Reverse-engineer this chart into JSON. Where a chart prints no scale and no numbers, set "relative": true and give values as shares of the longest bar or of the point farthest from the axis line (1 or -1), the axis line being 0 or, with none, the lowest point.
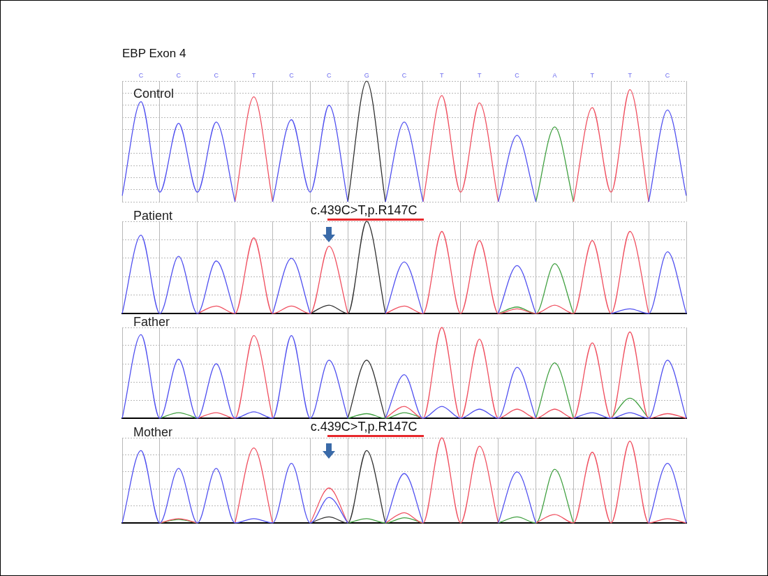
{
  "chart_data": [
    {
      "type": "line",
      "relative": true,
      "title": "EBP Exon 4",
      "subtitle": "Control",
      "grid": true,
      "legend": false,
      "marker": "none",
      "tick_labels": "x",
      "categories": [
        null,
        "C",
        null,
        "C",
        null,
        "C",
        null,
        "T",
        null,
        "C",
        null,
        "C",
        null,
        "G",
        null,
        "C",
        null,
        "T",
        null,
        "T",
        null,
        "C",
        null,
        "A",
        null,
        "T",
        null,
        "T",
        null,
        "C",
        null
      ],
      "series": [
        {
          "color": "#5050f0",
          "values": [
            0.05,
            0.83,
            0.08,
            0.65,
            0.08,
            0.66,
            0,
            null,
            0,
            0.68,
            0.08,
            0.8,
            0,
            null,
            0,
            0.66,
            0,
            null,
            null,
            null,
            0,
            0.55,
            0,
            null,
            null,
            null,
            null,
            null,
            0,
            0.76,
            0.05
          ]
        },
        {
          "color": "#f05060",
          "values": [
            null,
            null,
            null,
            null,
            null,
            null,
            0,
            0.87,
            0,
            null,
            null,
            null,
            null,
            null,
            null,
            null,
            0,
            0.88,
            0.08,
            0.82,
            0,
            null,
            null,
            null,
            0,
            0.78,
            0.08,
            0.93,
            0,
            null,
            null
          ]
        },
        {
          "color": "#303030",
          "values": [
            null,
            null,
            null,
            null,
            null,
            null,
            null,
            null,
            null,
            null,
            null,
            null,
            0,
            1,
            0,
            null,
            null,
            null,
            null,
            null,
            null,
            null,
            null,
            null,
            null,
            null,
            null,
            null,
            null,
            null,
            null
          ]
        },
        {
          "color": "#40a040",
          "values": [
            null,
            null,
            null,
            null,
            null,
            null,
            null,
            null,
            null,
            null,
            null,
            null,
            null,
            null,
            null,
            null,
            null,
            null,
            null,
            null,
            null,
            null,
            0,
            0.62,
            0,
            null,
            null,
            null,
            null,
            null,
            null
          ]
        }
      ]
    },
    {
      "type": "line",
      "relative": true,
      "title": "Patient",
      "grid": true,
      "legend": false,
      "marker": "none",
      "tick_labels": false,
      "annotations": [
        "c.439C>T,p.R147C"
      ],
      "categories": [
        null,
        null,
        null,
        null,
        null,
        null,
        null,
        null,
        null,
        null,
        null,
        null,
        null,
        null,
        null,
        null,
        null,
        null,
        null,
        null,
        null,
        null,
        null,
        null,
        null,
        null,
        null,
        null,
        null,
        null,
        null
      ],
      "series": [
        {
          "color": "#5050f0",
          "values": [
            0,
            0.85,
            0,
            0.62,
            0,
            0.57,
            0,
            null,
            0,
            0.6,
            0,
            null,
            null,
            null,
            0,
            0.56,
            0,
            null,
            null,
            null,
            0,
            0.52,
            0,
            null,
            null,
            null,
            0,
            0.05,
            0,
            0.67,
            0
          ]
        },
        {
          "color": "#f05060",
          "values": [
            null,
            null,
            null,
            null,
            0,
            0.08,
            0,
            0.82,
            0,
            0.08,
            0,
            0.73,
            0,
            null,
            0,
            0.08,
            0,
            0.89,
            0,
            0.79,
            0,
            0.05,
            0,
            0.09,
            0,
            0.79,
            0,
            0.89,
            0,
            null,
            null
          ]
        },
        {
          "color": "#303030",
          "values": [
            null,
            null,
            null,
            null,
            null,
            null,
            null,
            null,
            null,
            null,
            0,
            0.09,
            0,
            1,
            0,
            null,
            null,
            null,
            null,
            null,
            null,
            null,
            null,
            null,
            null,
            null,
            null,
            null,
            null,
            null,
            null
          ]
        },
        {
          "color": "#40a040",
          "values": [
            null,
            null,
            null,
            null,
            null,
            null,
            null,
            null,
            null,
            null,
            null,
            null,
            null,
            null,
            null,
            null,
            null,
            null,
            null,
            null,
            0,
            0.07,
            0,
            0.54,
            0,
            null,
            null,
            null,
            null,
            null,
            null
          ]
        }
      ]
    },
    {
      "type": "line",
      "relative": true,
      "title": "Father",
      "grid": true,
      "legend": false,
      "marker": "none",
      "tick_labels": false,
      "categories": [
        null,
        null,
        null,
        null,
        null,
        null,
        null,
        null,
        null,
        null,
        null,
        null,
        null,
        null,
        null,
        null,
        null,
        null,
        null,
        null,
        null,
        null,
        null,
        null,
        null,
        null,
        null,
        null,
        null,
        null,
        null
      ],
      "series": [
        {
          "color": "#5050f0",
          "values": [
            0,
            0.92,
            0,
            0.65,
            0,
            0.6,
            0,
            0.07,
            0,
            0.91,
            0,
            0.64,
            0,
            null,
            0,
            0.48,
            0,
            0.13,
            0,
            0.1,
            0,
            0.56,
            0,
            null,
            0,
            0.06,
            0,
            0.06,
            0,
            0.64,
            0
          ]
        },
        {
          "color": "#f05060",
          "values": [
            null,
            null,
            null,
            null,
            0,
            0.06,
            0,
            0.91,
            0,
            null,
            null,
            null,
            null,
            null,
            0,
            0.13,
            0,
            1,
            0,
            0.87,
            0,
            0.1,
            0,
            0.1,
            0,
            0.83,
            0,
            0.95,
            0,
            0.05,
            0
          ]
        },
        {
          "color": "#303030",
          "values": [
            null,
            null,
            null,
            null,
            null,
            null,
            null,
            null,
            null,
            null,
            null,
            null,
            0,
            0.64,
            0,
            null,
            null,
            null,
            null,
            null,
            null,
            null,
            null,
            null,
            null,
            null,
            null,
            null,
            null,
            null,
            null
          ]
        },
        {
          "color": "#40a040",
          "values": [
            null,
            null,
            0,
            0.06,
            0,
            null,
            null,
            null,
            null,
            null,
            null,
            null,
            0,
            0.05,
            0,
            0.06,
            0,
            null,
            null,
            null,
            null,
            null,
            0,
            0.61,
            0,
            null,
            0,
            0.22,
            0,
            null,
            null
          ]
        }
      ]
    },
    {
      "type": "line",
      "relative": true,
      "title": "Mother",
      "grid": true,
      "legend": false,
      "marker": "none",
      "tick_labels": false,
      "annotations": [
        "c.439C>T,p.R147C"
      ],
      "categories": [
        null,
        null,
        null,
        null,
        null,
        null,
        null,
        null,
        null,
        null,
        null,
        null,
        null,
        null,
        null,
        null,
        null,
        null,
        null,
        null,
        null,
        null,
        null,
        null,
        null,
        null,
        null,
        null,
        null,
        null,
        null
      ],
      "series": [
        {
          "color": "#5050f0",
          "values": [
            0,
            0.85,
            0,
            0.64,
            0,
            0.64,
            0,
            0.05,
            0,
            0.7,
            0,
            0.3,
            0,
            null,
            0,
            0.58,
            0,
            null,
            null,
            null,
            0,
            0.6,
            0,
            null,
            null,
            null,
            null,
            null,
            0,
            0.7,
            0
          ]
        },
        {
          "color": "#f05060",
          "values": [
            null,
            null,
            0,
            0.05,
            0,
            null,
            0,
            0.88,
            0,
            null,
            0,
            0.41,
            0,
            null,
            0,
            0.12,
            0,
            1,
            0,
            0.9,
            0,
            null,
            0,
            0.1,
            0,
            0.83,
            0,
            0.96,
            0,
            0.05,
            0
          ]
        },
        {
          "color": "#303030",
          "values": [
            null,
            null,
            null,
            null,
            null,
            null,
            null,
            null,
            null,
            null,
            0,
            0.07,
            0,
            0.85,
            0,
            null,
            null,
            null,
            null,
            null,
            null,
            null,
            null,
            null,
            null,
            null,
            null,
            null,
            null,
            null,
            null
          ]
        },
        {
          "color": "#40a040",
          "values": [
            null,
            null,
            0,
            0.04,
            0,
            null,
            null,
            null,
            null,
            null,
            null,
            null,
            0,
            0.05,
            0,
            0.06,
            0,
            null,
            null,
            null,
            0,
            0.07,
            0,
            0.63,
            0,
            null,
            null,
            null,
            null,
            null,
            null
          ]
        }
      ]
    }
  ]
}
